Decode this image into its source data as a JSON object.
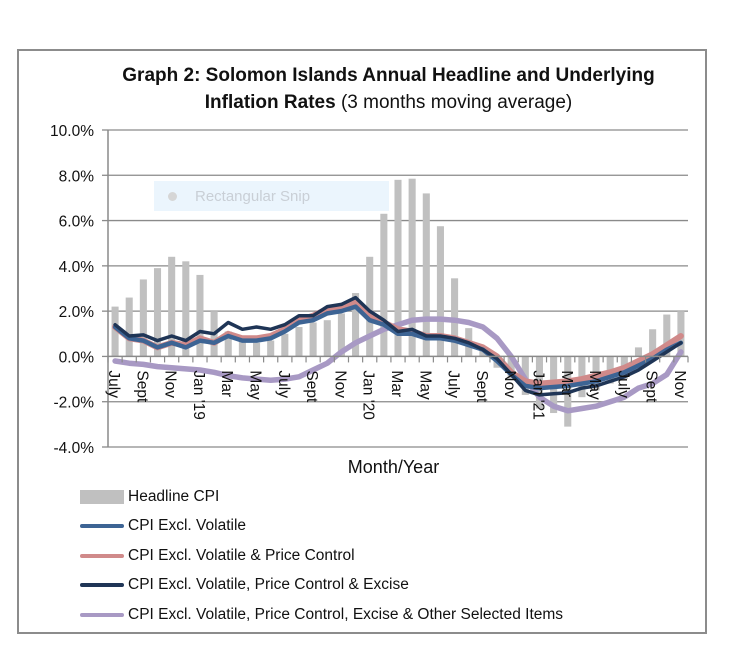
{
  "chart_data": {
    "type": "bar",
    "title": "Graph 2:  Solomon Islands Annual Headline and Underlying",
    "title_line2_bold": "Inflation Rates",
    "title_line2_rest": " (3 months moving average)",
    "xlabel": "Month/Year",
    "ylabel": "",
    "ylim": [
      -4.0,
      10.0
    ],
    "yticks": [
      10.0,
      8.0,
      6.0,
      4.0,
      2.0,
      0.0,
      -2.0,
      -4.0
    ],
    "ytick_labels": [
      "10.0%",
      "8.0%",
      "6.0%",
      "4.0%",
      "2.0%",
      "0.0%",
      "-2.0%",
      "-4.0%"
    ],
    "grid": true,
    "legend_position": "bottom",
    "categories": [
      "Jul 2018",
      "Aug 2018",
      "Sep 2018",
      "Oct 2018",
      "Nov 2018",
      "Dec 2018",
      "Jan 2019",
      "Feb 2019",
      "Mar 2019",
      "Apr 2019",
      "May 2019",
      "Jun 2019",
      "Jul 2019",
      "Aug 2019",
      "Sep 2019",
      "Oct 2019",
      "Nov 2019",
      "Dec 2019",
      "Jan 2020",
      "Feb 2020",
      "Mar 2020",
      "Apr 2020",
      "May 2020",
      "Jun 2020",
      "Jul 2020",
      "Aug 2020",
      "Sep 2020",
      "Oct 2020",
      "Nov 2020",
      "Dec 2020",
      "Jan 2021",
      "Feb 2021",
      "Mar 2021",
      "Apr 2021",
      "May 2021",
      "Jun 2021",
      "Jul 2021",
      "Aug 2021",
      "Sep 2021",
      "Oct 2021",
      "Nov 2021"
    ],
    "xtick_labels": [
      "July",
      "",
      "Sept",
      "",
      "Nov",
      "",
      "Jan '19",
      "",
      "Mar",
      "",
      "May",
      "",
      "July",
      "",
      "Sept",
      "",
      "Nov",
      "",
      "Jan '20",
      "",
      "Mar",
      "",
      "May",
      "",
      "July",
      "",
      "Sept",
      "",
      "Nov",
      "",
      "Jan '21",
      "",
      "Mar",
      "",
      "May",
      "",
      "July",
      "",
      "Sept",
      "",
      "Nov"
    ],
    "series": [
      {
        "name": "Headline CPI",
        "kind": "bar",
        "color": "#c0c0c0",
        "values": [
          2.2,
          2.6,
          3.4,
          3.9,
          4.4,
          4.2,
          3.6,
          2.0,
          1.1,
          0.8,
          0.6,
          0.7,
          1.0,
          1.3,
          1.5,
          1.6,
          1.9,
          2.8,
          4.4,
          6.3,
          7.8,
          7.85,
          7.2,
          5.75,
          3.45,
          1.25,
          0.3,
          -0.5,
          -1.0,
          -1.7,
          -2.3,
          -2.5,
          -3.1,
          -1.8,
          -1.5,
          -1.2,
          -1.0,
          0.4,
          1.2,
          1.85,
          2.0
        ]
      },
      {
        "name": "CPI Excl. Volatile",
        "kind": "line",
        "color": "#3d6494",
        "values": [
          1.3,
          0.8,
          0.7,
          0.4,
          0.6,
          0.4,
          0.7,
          0.6,
          0.9,
          0.7,
          0.7,
          0.8,
          1.1,
          1.5,
          1.6,
          1.9,
          2.0,
          2.2,
          1.6,
          1.4,
          1.0,
          1.0,
          0.8,
          0.8,
          0.7,
          0.5,
          0.3,
          -0.2,
          -0.8,
          -1.3,
          -1.4,
          -1.35,
          -1.3,
          -1.2,
          -1.1,
          -0.9,
          -0.7,
          -0.4,
          -0.1,
          0.3,
          0.6
        ]
      },
      {
        "name": "CPI Excl. Volatile & Price Control",
        "kind": "line",
        "color": "#d08a8a",
        "values": [
          1.3,
          0.8,
          0.7,
          0.4,
          0.6,
          0.5,
          0.8,
          0.6,
          1.0,
          0.8,
          0.8,
          0.9,
          1.2,
          1.6,
          1.8,
          2.1,
          2.2,
          2.4,
          1.8,
          1.5,
          1.2,
          1.1,
          0.9,
          0.9,
          0.8,
          0.6,
          0.4,
          0.0,
          -0.7,
          -1.1,
          -1.2,
          -1.15,
          -1.1,
          -1.0,
          -0.85,
          -0.7,
          -0.5,
          -0.2,
          0.1,
          0.5,
          0.9
        ]
      },
      {
        "name": "CPI Excl. Volatile, Price Control & Excise",
        "kind": "line",
        "color": "#1f3556",
        "values": [
          1.4,
          0.9,
          0.95,
          0.7,
          0.9,
          0.7,
          1.1,
          1.0,
          1.5,
          1.2,
          1.3,
          1.2,
          1.4,
          1.8,
          1.8,
          2.2,
          2.3,
          2.6,
          2.0,
          1.6,
          1.1,
          1.2,
          0.9,
          0.9,
          0.8,
          0.6,
          0.3,
          -0.1,
          -0.8,
          -1.5,
          -1.7,
          -1.65,
          -1.6,
          -1.4,
          -1.3,
          -1.1,
          -0.9,
          -0.6,
          -0.2,
          0.2,
          0.6
        ]
      },
      {
        "name": "CPI Excl. Volatile, Price Control, Excise & Other Selected Items",
        "kind": "line",
        "color": "#a899c4",
        "values": [
          -0.2,
          -0.3,
          -0.35,
          -0.45,
          -0.5,
          -0.55,
          -0.6,
          -0.7,
          -0.85,
          -0.95,
          -1.0,
          -1.05,
          -1.0,
          -0.9,
          -0.6,
          -0.3,
          0.2,
          0.6,
          0.9,
          1.2,
          1.4,
          1.6,
          1.65,
          1.65,
          1.6,
          1.5,
          1.3,
          0.8,
          0.0,
          -1.0,
          -1.8,
          -2.2,
          -2.4,
          -2.3,
          -2.2,
          -2.0,
          -1.8,
          -1.4,
          -1.2,
          -0.8,
          0.2
        ]
      }
    ]
  },
  "overlay": {
    "snip_label": "Rectangular Snip"
  }
}
